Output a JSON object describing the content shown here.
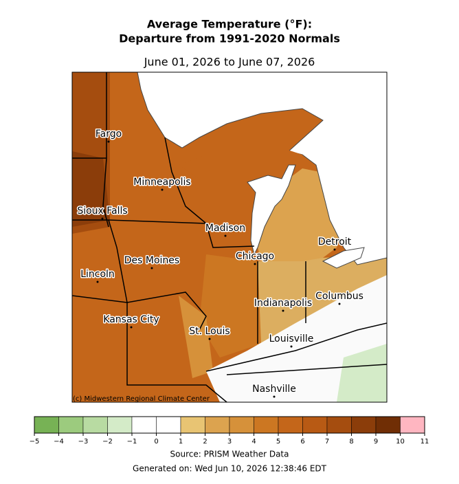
{
  "title": [
    "Average Temperature (°F):",
    "Departure from 1991-2020 Normals"
  ],
  "subtitle": "June 01, 2026 to June 07, 2026",
  "cities": [
    "Fargo",
    "Minneapolis",
    "Sioux Falls",
    "Madison",
    "Detroit",
    "Chicago",
    "Des Moines",
    "Lincoln",
    "Columbus",
    "Indianapolis",
    "Kansas City",
    "St. Louis",
    "Louisville",
    "Nashville"
  ],
  "credit": "(c) Midwestern Regional Climate Center",
  "colorbar": {
    "ticks": [
      {
        "value": -5,
        "label": "−5"
      },
      {
        "value": -4,
        "label": "−4"
      },
      {
        "value": -3,
        "label": "−3"
      },
      {
        "value": -2,
        "label": "−2"
      },
      {
        "value": -1,
        "label": "−1"
      },
      0,
      1,
      2,
      3,
      4,
      5,
      6,
      7,
      8,
      9,
      10,
      11
    ],
    "colors": [
      "#77b255",
      "#9ccb7e",
      "#b8dba2",
      "#d4ebc8",
      "#ffffff",
      "#ffffff",
      "#e8c473",
      "#dca34f",
      "#d6913a",
      "#cc7722",
      "#c4661a",
      "#b85a14",
      "#a54d0f",
      "#8b3d0a",
      "#702e05",
      "#ffb6c1"
    ]
  },
  "source": "Source: PRISM Weather Data",
  "generated": "Generated on: Wed Jun 10, 2026 12:38:46 EDT"
}
